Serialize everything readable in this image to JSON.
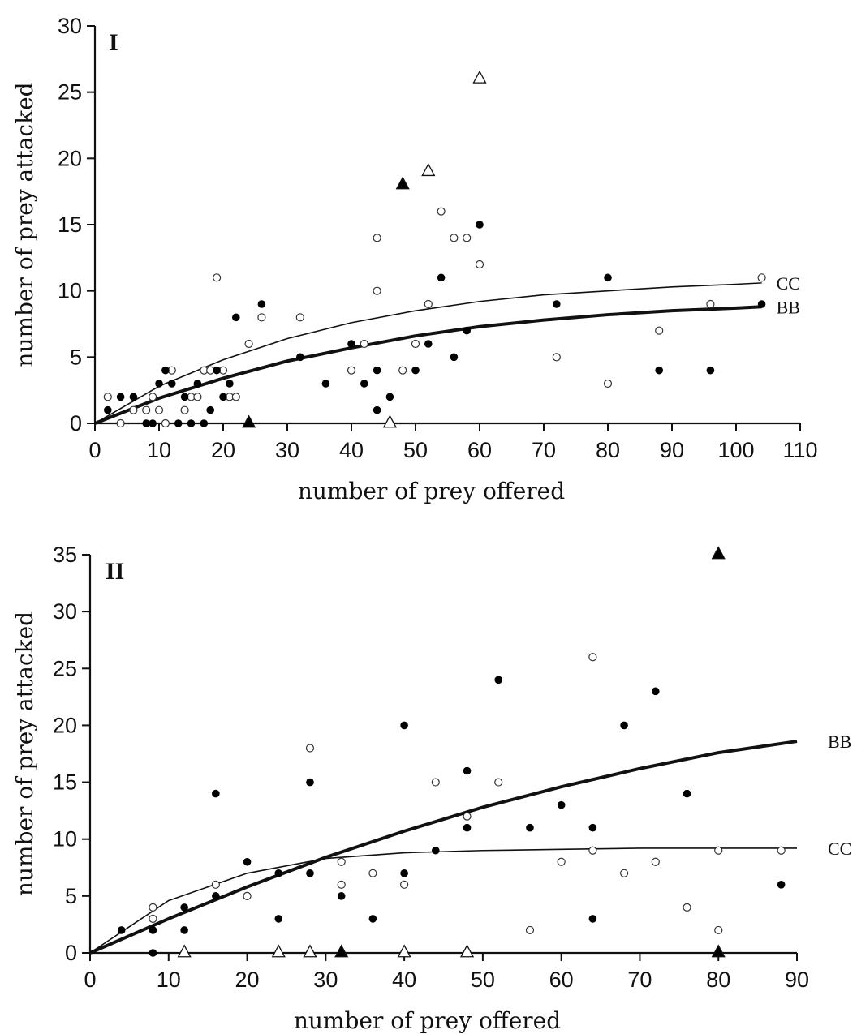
{
  "chart_data": [
    {
      "type": "scatter",
      "panel_label": "I",
      "xlabel": "number of prey  offered",
      "ylabel": "number of prey attacked",
      "xlim": [
        0,
        110
      ],
      "ylim": [
        0,
        30
      ],
      "xticks": [
        0,
        10,
        20,
        30,
        40,
        50,
        60,
        70,
        80,
        90,
        100,
        110
      ],
      "yticks": [
        0,
        5,
        10,
        15,
        20,
        25,
        30
      ],
      "grid": false,
      "series": [
        {
          "marker": "open-circle",
          "points": [
            [
              2,
              2
            ],
            [
              4,
              0
            ],
            [
              6,
              1
            ],
            [
              8,
              1
            ],
            [
              9,
              2
            ],
            [
              10,
              1
            ],
            [
              11,
              0
            ],
            [
              12,
              4
            ],
            [
              14,
              1
            ],
            [
              15,
              2
            ],
            [
              16,
              2
            ],
            [
              17,
              4
            ],
            [
              18,
              4
            ],
            [
              20,
              4
            ],
            [
              19,
              11
            ],
            [
              21,
              2
            ],
            [
              22,
              2
            ],
            [
              24,
              6
            ],
            [
              26,
              8
            ],
            [
              32,
              8
            ],
            [
              40,
              4
            ],
            [
              42,
              6
            ],
            [
              44,
              14
            ],
            [
              44,
              10
            ],
            [
              48,
              4
            ],
            [
              50,
              6
            ],
            [
              52,
              9
            ],
            [
              54,
              16
            ],
            [
              56,
              14
            ],
            [
              58,
              14
            ],
            [
              60,
              12
            ],
            [
              72,
              5
            ],
            [
              80,
              3
            ],
            [
              88,
              7
            ],
            [
              96,
              9
            ],
            [
              104,
              11
            ]
          ]
        },
        {
          "marker": "filled-circle",
          "points": [
            [
              2,
              1
            ],
            [
              4,
              2
            ],
            [
              6,
              2
            ],
            [
              8,
              0
            ],
            [
              9,
              0
            ],
            [
              10,
              3
            ],
            [
              11,
              4
            ],
            [
              12,
              3
            ],
            [
              13,
              0
            ],
            [
              14,
              2
            ],
            [
              15,
              0
            ],
            [
              16,
              3
            ],
            [
              17,
              0
            ],
            [
              18,
              1
            ],
            [
              19,
              4
            ],
            [
              20,
              2
            ],
            [
              21,
              3
            ],
            [
              22,
              8
            ],
            [
              26,
              9
            ],
            [
              32,
              5
            ],
            [
              36,
              3
            ],
            [
              40,
              6
            ],
            [
              42,
              3
            ],
            [
              44,
              4
            ],
            [
              44,
              1
            ],
            [
              46,
              2
            ],
            [
              50,
              4
            ],
            [
              52,
              6
            ],
            [
              54,
              11
            ],
            [
              56,
              5
            ],
            [
              58,
              7
            ],
            [
              60,
              15
            ],
            [
              72,
              9
            ],
            [
              80,
              11
            ],
            [
              88,
              4
            ],
            [
              96,
              4
            ],
            [
              104,
              9
            ]
          ]
        },
        {
          "marker": "open-triangle",
          "points": [
            [
              46,
              0
            ],
            [
              52,
              19
            ],
            [
              60,
              26
            ]
          ]
        },
        {
          "marker": "filled-triangle",
          "points": [
            [
              24,
              0
            ],
            [
              48,
              18
            ]
          ]
        }
      ],
      "curves": [
        {
          "name": "CC",
          "style": "thin",
          "x": [
            0,
            10,
            20,
            30,
            40,
            50,
            60,
            70,
            80,
            90,
            100,
            104
          ],
          "y": [
            0,
            2.8,
            4.8,
            6.4,
            7.6,
            8.5,
            9.2,
            9.7,
            10.0,
            10.3,
            10.5,
            10.6
          ]
        },
        {
          "name": "BB",
          "style": "thick",
          "x": [
            0,
            10,
            20,
            30,
            40,
            50,
            60,
            70,
            80,
            90,
            100,
            104
          ],
          "y": [
            0,
            1.9,
            3.4,
            4.7,
            5.7,
            6.6,
            7.3,
            7.8,
            8.2,
            8.5,
            8.7,
            8.8
          ]
        }
      ]
    },
    {
      "type": "scatter",
      "panel_label": "II",
      "xlabel": "number of prey  offered",
      "ylabel": "number of prey attacked",
      "xlim": [
        0,
        90
      ],
      "ylim": [
        0,
        35
      ],
      "xticks": [
        0,
        10,
        20,
        30,
        40,
        50,
        60,
        70,
        80,
        90
      ],
      "yticks": [
        0,
        5,
        10,
        15,
        20,
        25,
        30,
        35
      ],
      "grid": false,
      "series": [
        {
          "marker": "open-circle",
          "points": [
            [
              8,
              4
            ],
            [
              8,
              3
            ],
            [
              16,
              6
            ],
            [
              20,
              5
            ],
            [
              28,
              18
            ],
            [
              32,
              8
            ],
            [
              32,
              6
            ],
            [
              36,
              7
            ],
            [
              40,
              6
            ],
            [
              44,
              15
            ],
            [
              48,
              12
            ],
            [
              52,
              15
            ],
            [
              56,
              2
            ],
            [
              60,
              8
            ],
            [
              64,
              26
            ],
            [
              64,
              9
            ],
            [
              68,
              7
            ],
            [
              72,
              8
            ],
            [
              76,
              4
            ],
            [
              80,
              9
            ],
            [
              80,
              2
            ],
            [
              88,
              9
            ]
          ]
        },
        {
          "marker": "filled-circle",
          "points": [
            [
              4,
              2
            ],
            [
              8,
              2
            ],
            [
              8,
              0
            ],
            [
              12,
              4
            ],
            [
              12,
              2
            ],
            [
              16,
              14
            ],
            [
              16,
              5
            ],
            [
              20,
              8
            ],
            [
              24,
              3
            ],
            [
              24,
              7
            ],
            [
              28,
              15
            ],
            [
              28,
              7
            ],
            [
              32,
              5
            ],
            [
              36,
              3
            ],
            [
              40,
              20
            ],
            [
              40,
              7
            ],
            [
              44,
              9
            ],
            [
              48,
              16
            ],
            [
              48,
              11
            ],
            [
              52,
              24
            ],
            [
              56,
              11
            ],
            [
              60,
              13
            ],
            [
              64,
              11
            ],
            [
              64,
              3
            ],
            [
              68,
              20
            ],
            [
              72,
              23
            ],
            [
              76,
              14
            ],
            [
              88,
              6
            ]
          ]
        },
        {
          "marker": "open-triangle",
          "points": [
            [
              12,
              0
            ],
            [
              24,
              0
            ],
            [
              28,
              0
            ],
            [
              40,
              0
            ],
            [
              48,
              0
            ]
          ]
        },
        {
          "marker": "filled-triangle",
          "points": [
            [
              32,
              0
            ],
            [
              80,
              0
            ],
            [
              80,
              35
            ]
          ]
        }
      ],
      "curves": [
        {
          "name": "BB",
          "style": "thick",
          "x": [
            0,
            10,
            20,
            30,
            40,
            50,
            60,
            70,
            80,
            90
          ],
          "y": [
            0,
            3.0,
            5.8,
            8.4,
            10.7,
            12.8,
            14.6,
            16.2,
            17.6,
            18.6
          ]
        },
        {
          "name": "CC",
          "style": "thin",
          "x": [
            0,
            10,
            20,
            30,
            40,
            50,
            60,
            70,
            80,
            90
          ],
          "y": [
            0,
            4.6,
            7.0,
            8.3,
            8.8,
            9.0,
            9.1,
            9.2,
            9.2,
            9.2
          ]
        }
      ]
    }
  ]
}
